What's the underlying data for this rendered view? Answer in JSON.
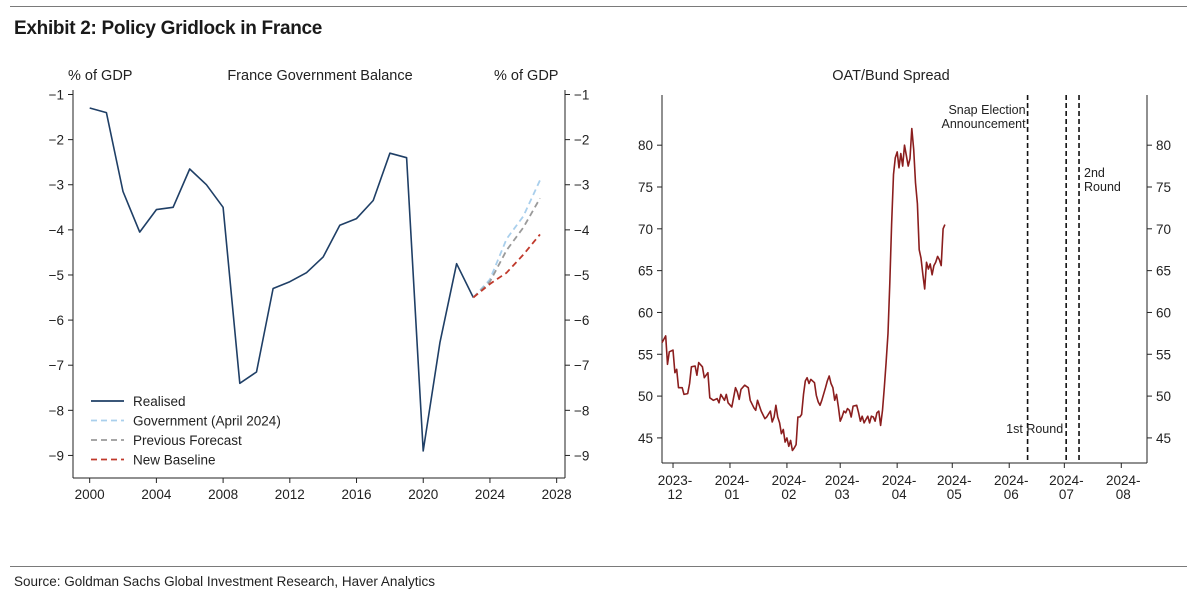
{
  "exhibit_title": "Exhibit 2: Policy Gridlock in France",
  "source": "Source: Goldman Sachs Global Investment Research, Haver Analytics",
  "colors": {
    "realised": "#1f3f66",
    "government": "#a9cfec",
    "previous": "#9a9a9a",
    "baseline": "#c0392b",
    "spread": "#8b1e1e"
  },
  "chart_data": [
    {
      "type": "line",
      "title": "France Government Balance",
      "ylabel_left": "% of GDP",
      "ylabel_right": "% of GDP",
      "xlim": [
        1999,
        2028.5
      ],
      "ylim": [
        -9.5,
        -0.9
      ],
      "xticks": [
        2000,
        2004,
        2008,
        2012,
        2016,
        2020,
        2024,
        2028
      ],
      "yticks": [
        -1,
        -2,
        -3,
        -4,
        -5,
        -6,
        -7,
        -8,
        -9
      ],
      "grid": false,
      "legend_position": "bottom-left",
      "series": [
        {
          "name": "Realised",
          "style": "solid",
          "color": "#1f3f66",
          "x": [
            2000,
            2001,
            2002,
            2003,
            2004,
            2005,
            2006,
            2007,
            2008,
            2009,
            2010,
            2011,
            2012,
            2013,
            2014,
            2015,
            2016,
            2017,
            2018,
            2019,
            2020,
            2021,
            2022,
            2023
          ],
          "y": [
            -1.3,
            -1.4,
            -3.15,
            -4.05,
            -3.55,
            -3.5,
            -2.65,
            -3.0,
            -3.5,
            -7.4,
            -7.15,
            -5.3,
            -5.15,
            -4.95,
            -4.6,
            -3.9,
            -3.75,
            -3.35,
            -2.3,
            -2.4,
            -8.9,
            -6.5,
            -4.75,
            -5.5
          ]
        },
        {
          "name": "Government (April 2024)",
          "style": "dashed",
          "color": "#a9cfec",
          "x": [
            2023,
            2024,
            2025,
            2026,
            2027
          ],
          "y": [
            -5.5,
            -5.1,
            -4.2,
            -3.7,
            -2.9
          ]
        },
        {
          "name": "Previous Forecast",
          "style": "dashed",
          "color": "#9a9a9a",
          "x": [
            2023,
            2024,
            2025,
            2026,
            2027
          ],
          "y": [
            -5.5,
            -5.15,
            -4.45,
            -3.95,
            -3.3
          ]
        },
        {
          "name": "New Baseline",
          "style": "dashed",
          "color": "#c0392b",
          "x": [
            2023,
            2024,
            2025,
            2026,
            2027
          ],
          "y": [
            -5.5,
            -5.2,
            -4.95,
            -4.55,
            -4.1
          ]
        }
      ]
    },
    {
      "type": "line",
      "title": "OAT/Bund Spread",
      "xlim": [
        0,
        264
      ],
      "ylim": [
        42,
        86
      ],
      "xticks": [
        {
          "x": 6,
          "label": [
            "2023-",
            "12"
          ]
        },
        {
          "x": 37,
          "label": [
            "2024-",
            "01"
          ]
        },
        {
          "x": 68,
          "label": [
            "2024-",
            "02"
          ]
        },
        {
          "x": 97,
          "label": [
            "2024-",
            "03"
          ]
        },
        {
          "x": 128,
          "label": [
            "2024-",
            "04"
          ]
        },
        {
          "x": 158,
          "label": [
            "2024-",
            "05"
          ]
        },
        {
          "x": 189,
          "label": [
            "2024-",
            "06"
          ]
        },
        {
          "x": 219,
          "label": [
            "2024-",
            "07"
          ]
        },
        {
          "x": 250,
          "label": [
            "2024-",
            "08"
          ]
        }
      ],
      "yticks": [
        45,
        50,
        55,
        60,
        65,
        70,
        75,
        80
      ],
      "grid": false,
      "vlines": [
        {
          "x": 199,
          "label": [
            "Snap Election",
            "Announcement"
          ]
        },
        {
          "x": 220,
          "label": [
            "1st Round"
          ]
        },
        {
          "x": 227,
          "label": [
            "2nd",
            "Round"
          ]
        }
      ],
      "series": [
        {
          "name": "OAT/Bund Spread",
          "color": "#8b1e1e",
          "points": [
            [
              0,
              56.4
            ],
            [
              2,
              57.2
            ],
            [
              3,
              53.8
            ],
            [
              4,
              55.3
            ],
            [
              6,
              55.5
            ],
            [
              7,
              52.8
            ],
            [
              8,
              53.2
            ],
            [
              9,
              51.0
            ],
            [
              11,
              51.0
            ],
            [
              12,
              50.2
            ],
            [
              14,
              50.3
            ],
            [
              15,
              51.5
            ],
            [
              16,
              53.5
            ],
            [
              18,
              53.6
            ],
            [
              19,
              52.5
            ],
            [
              20,
              54.0
            ],
            [
              22,
              53.5
            ],
            [
              23,
              52.2
            ],
            [
              25,
              52.8
            ],
            [
              26,
              49.8
            ],
            [
              28,
              49.5
            ],
            [
              30,
              49.7
            ],
            [
              31,
              49.2
            ],
            [
              32,
              50.2
            ],
            [
              34,
              49.5
            ],
            [
              35,
              50.2
            ],
            [
              36,
              49.2
            ],
            [
              38,
              48.7
            ],
            [
              40,
              51.0
            ],
            [
              41,
              50.5
            ],
            [
              42,
              49.6
            ],
            [
              43,
              50.8
            ],
            [
              45,
              51.3
            ],
            [
              47,
              51.0
            ],
            [
              48,
              49.5
            ],
            [
              50,
              48.6
            ],
            [
              51,
              48.3
            ],
            [
              52,
              49.5
            ],
            [
              54,
              48.2
            ],
            [
              56,
              47.3
            ],
            [
              57,
              47.5
            ],
            [
              59,
              48.2
            ],
            [
              60,
              46.9
            ],
            [
              61,
              47.5
            ],
            [
              62,
              48.9
            ],
            [
              63,
              47.5
            ],
            [
              64,
              46.8
            ],
            [
              65,
              45.5
            ],
            [
              66,
              46.0
            ],
            [
              67,
              44.5
            ],
            [
              68,
              45.0
            ],
            [
              69,
              44.0
            ],
            [
              70,
              44.7
            ],
            [
              71,
              43.5
            ],
            [
              72,
              43.8
            ],
            [
              73,
              44.2
            ],
            [
              74,
              47.5
            ],
            [
              75,
              47.5
            ],
            [
              76,
              47.8
            ],
            [
              77,
              50.2
            ],
            [
              78,
              51.8
            ],
            [
              79,
              52.2
            ],
            [
              80,
              51.5
            ],
            [
              81,
              52.0
            ],
            [
              83,
              51.6
            ],
            [
              84,
              50.1
            ],
            [
              85,
              49.3
            ],
            [
              86,
              48.9
            ],
            [
              87,
              49.5
            ],
            [
              89,
              51.0
            ],
            [
              90,
              51.8
            ],
            [
              91,
              52.4
            ],
            [
              92,
              51.5
            ],
            [
              93,
              51.0
            ],
            [
              94,
              49.5
            ],
            [
              95,
              50.2
            ],
            [
              96,
              48.7
            ],
            [
              97,
              47.0
            ],
            [
              98,
              47.5
            ],
            [
              99,
              48.2
            ],
            [
              100,
              48.0
            ],
            [
              101,
              48.5
            ],
            [
              102,
              48.3
            ],
            [
              103,
              47.5
            ],
            [
              104,
              48.8
            ],
            [
              106,
              48.9
            ],
            [
              107,
              48.0
            ],
            [
              108,
              47.0
            ],
            [
              109,
              47.6
            ],
            [
              110,
              46.8
            ],
            [
              111,
              47.2
            ],
            [
              112,
              47.6
            ],
            [
              113,
              46.8
            ],
            [
              114,
              47.6
            ],
            [
              115,
              47.5
            ],
            [
              116,
              47.0
            ],
            [
              117,
              48.0
            ],
            [
              118,
              48.2
            ],
            [
              119,
              46.5
            ],
            [
              120,
              48.3
            ],
            [
              121,
              51.0
            ],
            [
              122,
              54.0
            ],
            [
              123,
              57.5
            ],
            [
              124,
              63.5
            ],
            [
              125,
              70.5
            ],
            [
              126,
              76.5
            ],
            [
              127,
              78.5
            ],
            [
              128,
              79.2
            ],
            [
              129,
              77.3
            ],
            [
              130,
              79.0
            ],
            [
              131,
              77.5
            ],
            [
              132,
              80.0
            ],
            [
              133,
              78.8
            ],
            [
              134,
              77.5
            ],
            [
              135,
              78.4
            ],
            [
              136,
              82.0
            ],
            [
              137,
              79.5
            ],
            [
              138,
              75.5
            ],
            [
              139,
              73.0
            ],
            [
              140,
              67.5
            ],
            [
              141,
              66.5
            ],
            [
              142,
              64.5
            ],
            [
              143,
              62.8
            ],
            [
              144,
              66.0
            ],
            [
              145,
              65.2
            ],
            [
              146,
              65.8
            ],
            [
              147,
              64.5
            ],
            [
              148,
              65.6
            ],
            [
              149,
              66.0
            ],
            [
              150,
              66.7
            ],
            [
              151,
              66.3
            ],
            [
              152,
              65.6
            ],
            [
              153,
              70.0
            ],
            [
              154,
              70.5
            ]
          ]
        }
      ]
    }
  ],
  "legend": [
    {
      "label": "Realised",
      "style": "solid",
      "color": "#1f3f66"
    },
    {
      "label": "Government (April 2024)",
      "style": "dashed",
      "color": "#a9cfec"
    },
    {
      "label": "Previous Forecast",
      "style": "dashed",
      "color": "#9a9a9a"
    },
    {
      "label": "New Baseline",
      "style": "dashed",
      "color": "#c0392b"
    }
  ]
}
